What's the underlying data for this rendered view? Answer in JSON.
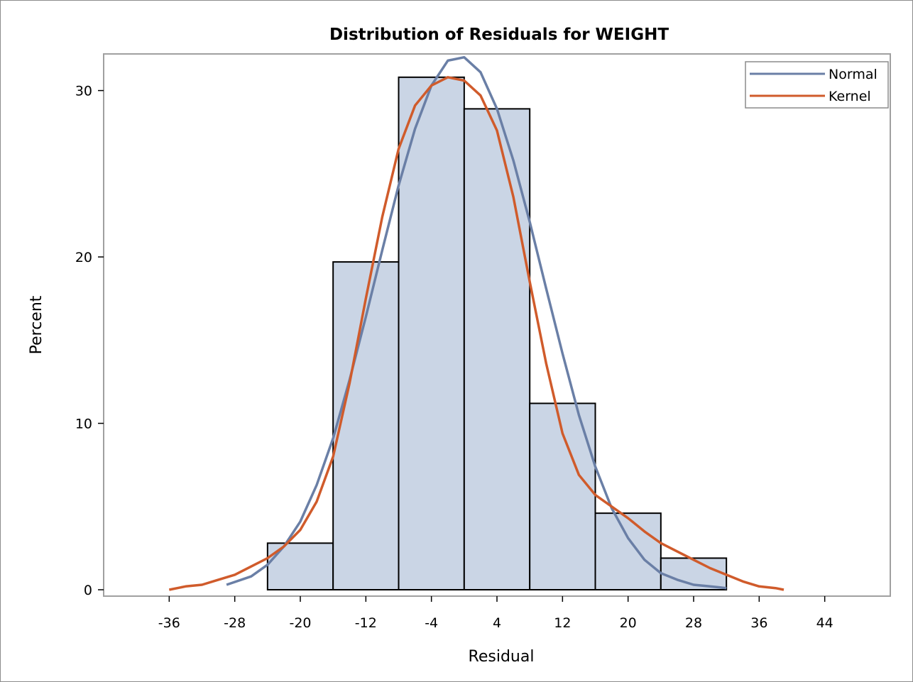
{
  "chart_data": {
    "type": "bar",
    "title": "Distribution of Residuals for WEIGHT",
    "xlabel": "Residual",
    "ylabel": "Percent",
    "xlim": [
      -44,
      52
    ],
    "ylim": [
      0,
      32.2
    ],
    "x_ticks": [
      -36,
      -28,
      -20,
      -12,
      -4,
      4,
      12,
      20,
      28,
      36,
      44
    ],
    "y_ticks": [
      0,
      10,
      20,
      30
    ],
    "bin_width": 8,
    "bins": [
      {
        "center": -20,
        "percent": 2.8
      },
      {
        "center": -12,
        "percent": 19.7
      },
      {
        "center": -4,
        "percent": 30.8
      },
      {
        "center": 4,
        "percent": 28.9
      },
      {
        "center": 12,
        "percent": 11.2
      },
      {
        "center": 20,
        "percent": 4.6
      },
      {
        "center": 28,
        "percent": 1.9
      }
    ],
    "bar_fill": "#cad5e5",
    "bar_stroke": "#000000",
    "series": [
      {
        "name": "Normal",
        "color": "#6a7fa6",
        "points": [
          [
            -29,
            0.3
          ],
          [
            -26,
            0.8
          ],
          [
            -24,
            1.5
          ],
          [
            -22,
            2.6
          ],
          [
            -20,
            4.1
          ],
          [
            -18,
            6.3
          ],
          [
            -16,
            9.1
          ],
          [
            -14,
            12.6
          ],
          [
            -12,
            16.4
          ],
          [
            -10,
            20.4
          ],
          [
            -8,
            24.3
          ],
          [
            -6,
            27.7
          ],
          [
            -4,
            30.3
          ],
          [
            -2,
            31.8
          ],
          [
            0,
            32.0
          ],
          [
            2,
            31.1
          ],
          [
            4,
            28.9
          ],
          [
            6,
            25.8
          ],
          [
            8,
            22.1
          ],
          [
            10,
            18.1
          ],
          [
            12,
            14.2
          ],
          [
            14,
            10.5
          ],
          [
            16,
            7.4
          ],
          [
            18,
            4.9
          ],
          [
            20,
            3.1
          ],
          [
            22,
            1.8
          ],
          [
            24,
            1.0
          ],
          [
            26,
            0.6
          ],
          [
            28,
            0.3
          ],
          [
            30,
            0.2
          ],
          [
            32,
            0.1
          ]
        ]
      },
      {
        "name": "Kernel",
        "color": "#d05b2b",
        "points": [
          [
            -36,
            0.0
          ],
          [
            -34,
            0.2
          ],
          [
            -32,
            0.3
          ],
          [
            -30,
            0.6
          ],
          [
            -28,
            0.9
          ],
          [
            -26,
            1.4
          ],
          [
            -24,
            1.9
          ],
          [
            -22,
            2.6
          ],
          [
            -20,
            3.6
          ],
          [
            -18,
            5.3
          ],
          [
            -16,
            8.0
          ],
          [
            -14,
            12.4
          ],
          [
            -12,
            17.5
          ],
          [
            -10,
            22.4
          ],
          [
            -8,
            26.5
          ],
          [
            -6,
            29.1
          ],
          [
            -4,
            30.3
          ],
          [
            -2,
            30.8
          ],
          [
            0,
            30.6
          ],
          [
            2,
            29.7
          ],
          [
            4,
            27.6
          ],
          [
            6,
            23.6
          ],
          [
            8,
            18.5
          ],
          [
            10,
            13.6
          ],
          [
            12,
            9.4
          ],
          [
            14,
            6.9
          ],
          [
            16,
            5.7
          ],
          [
            18,
            5.0
          ],
          [
            20,
            4.3
          ],
          [
            22,
            3.5
          ],
          [
            24,
            2.8
          ],
          [
            26,
            2.3
          ],
          [
            28,
            1.8
          ],
          [
            30,
            1.3
          ],
          [
            32,
            0.9
          ],
          [
            34,
            0.5
          ],
          [
            36,
            0.2
          ],
          [
            38,
            0.1
          ],
          [
            39,
            0.0
          ]
        ]
      }
    ],
    "legend": {
      "placement": "top-right",
      "entries": [
        "Normal",
        "Kernel"
      ]
    }
  }
}
